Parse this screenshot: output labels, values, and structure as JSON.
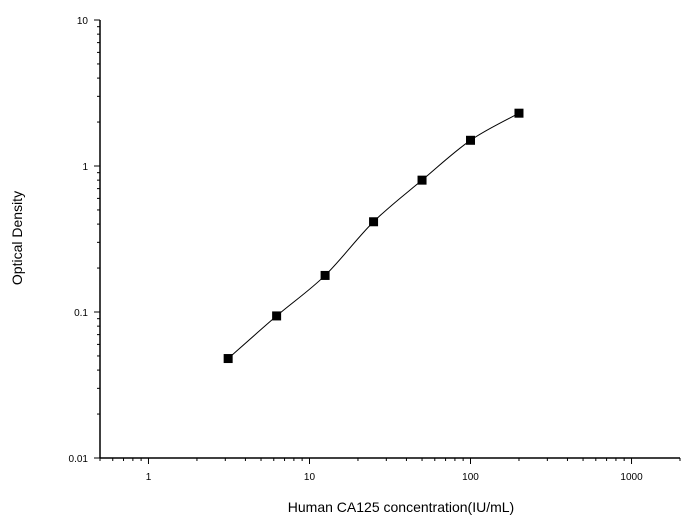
{
  "chart_data": {
    "type": "scatter",
    "xlabel": "Human CA125 concentration(IU/mL)",
    "ylabel": "Optical Density",
    "xscale": "log",
    "yscale": "log",
    "xlim": [
      0.5,
      2000
    ],
    "ylim": [
      0.01,
      10
    ],
    "x_ticks": [
      1,
      10,
      100,
      1000
    ],
    "x_tick_labels": [
      "1",
      "10",
      "100",
      "1000"
    ],
    "y_ticks": [
      0.01,
      0.1,
      1,
      10
    ],
    "y_tick_labels": [
      "0.01",
      "0.1",
      "1",
      "10"
    ],
    "grid": false,
    "legend": "none",
    "fit_curve": true,
    "marker": "square",
    "color": "#000000",
    "series": [
      {
        "x": [
          3.125,
          6.25,
          12.5,
          25,
          50,
          100,
          200
        ],
        "y": [
          0.048,
          0.094,
          0.178,
          0.415,
          0.8,
          1.5,
          2.3
        ]
      }
    ]
  }
}
